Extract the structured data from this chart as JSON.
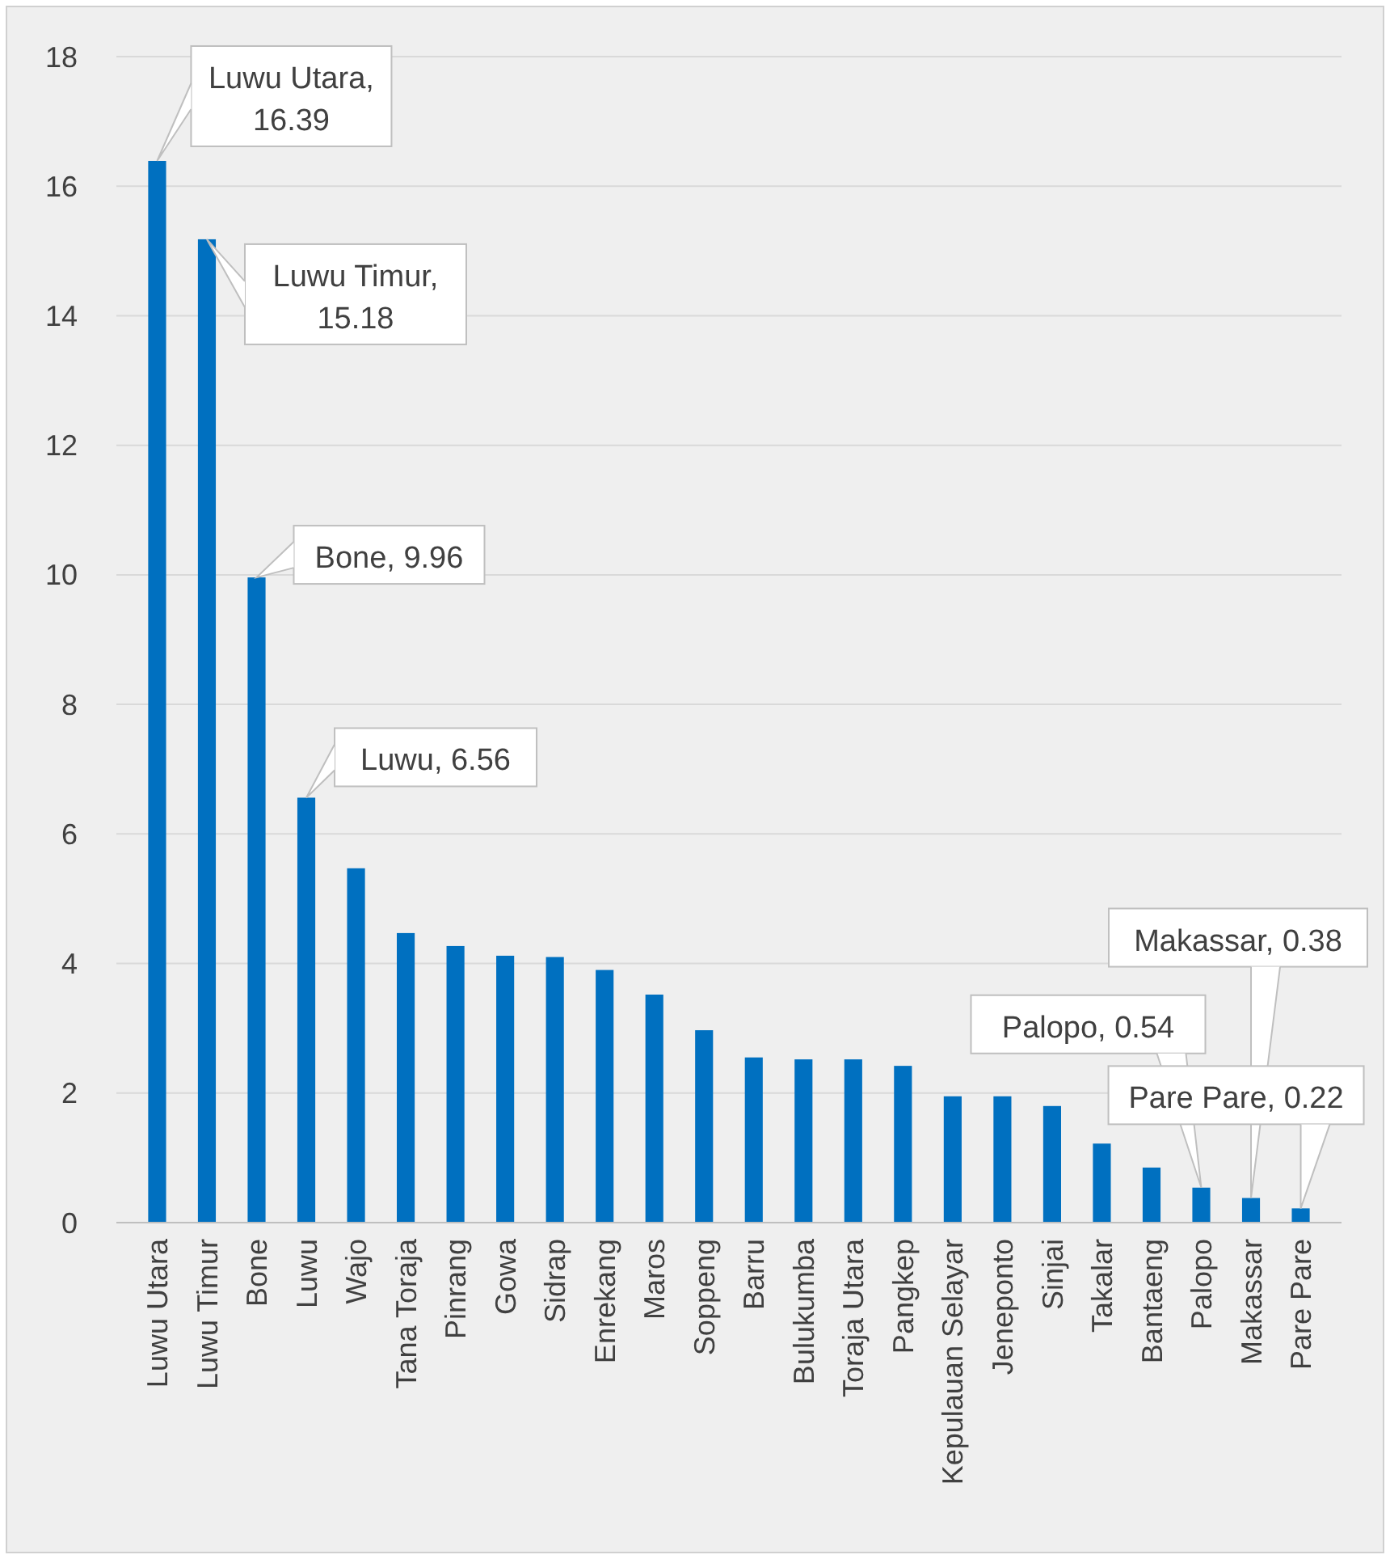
{
  "chart_data": {
    "type": "bar",
    "categories": [
      "Luwu Utara",
      "Luwu Timur",
      "Bone",
      "Luwu",
      "Wajo",
      "Tana Toraja",
      "Pinrang",
      "Gowa",
      "Sidrap",
      "Enrekang",
      "Maros",
      "Soppeng",
      "Barru",
      "Bulukumba",
      "Toraja Utara",
      "Pangkep",
      "Kepulauan Selayar",
      "Jeneponto",
      "Sinjai",
      "Takalar",
      "Bantaeng",
      "Palopo",
      "Makassar",
      "Pare Pare"
    ],
    "values": [
      16.39,
      15.18,
      9.96,
      6.56,
      5.47,
      4.47,
      4.27,
      4.12,
      4.1,
      3.9,
      3.52,
      2.97,
      2.55,
      2.52,
      2.52,
      2.42,
      1.95,
      1.95,
      1.8,
      1.22,
      0.85,
      0.54,
      0.38,
      0.22
    ],
    "color": "#0070c0",
    "ylim": [
      0,
      18
    ],
    "yticks": [
      0,
      2,
      4,
      6,
      8,
      10,
      12,
      14,
      16,
      18
    ],
    "grid": "y",
    "annotations": [
      {
        "text": "Luwu Utara, 16.39",
        "x": "Luwu Utara",
        "y": 16.39
      },
      {
        "text": "Luwu Timur, 15.18",
        "x": "Luwu Timur",
        "y": 15.18
      },
      {
        "text": "Bone, 9.96",
        "x": "Bone",
        "y": 9.96
      },
      {
        "text": "Luwu, 6.56",
        "x": "Luwu",
        "y": 6.56
      },
      {
        "text": "Palopo, 0.54",
        "x": "Palopo",
        "y": 0.54
      },
      {
        "text": "Makassar, 0.38",
        "x": "Makassar",
        "y": 0.38
      },
      {
        "text": "Pare Pare, 0.22",
        "x": "Pare Pare",
        "y": 0.22
      }
    ]
  }
}
